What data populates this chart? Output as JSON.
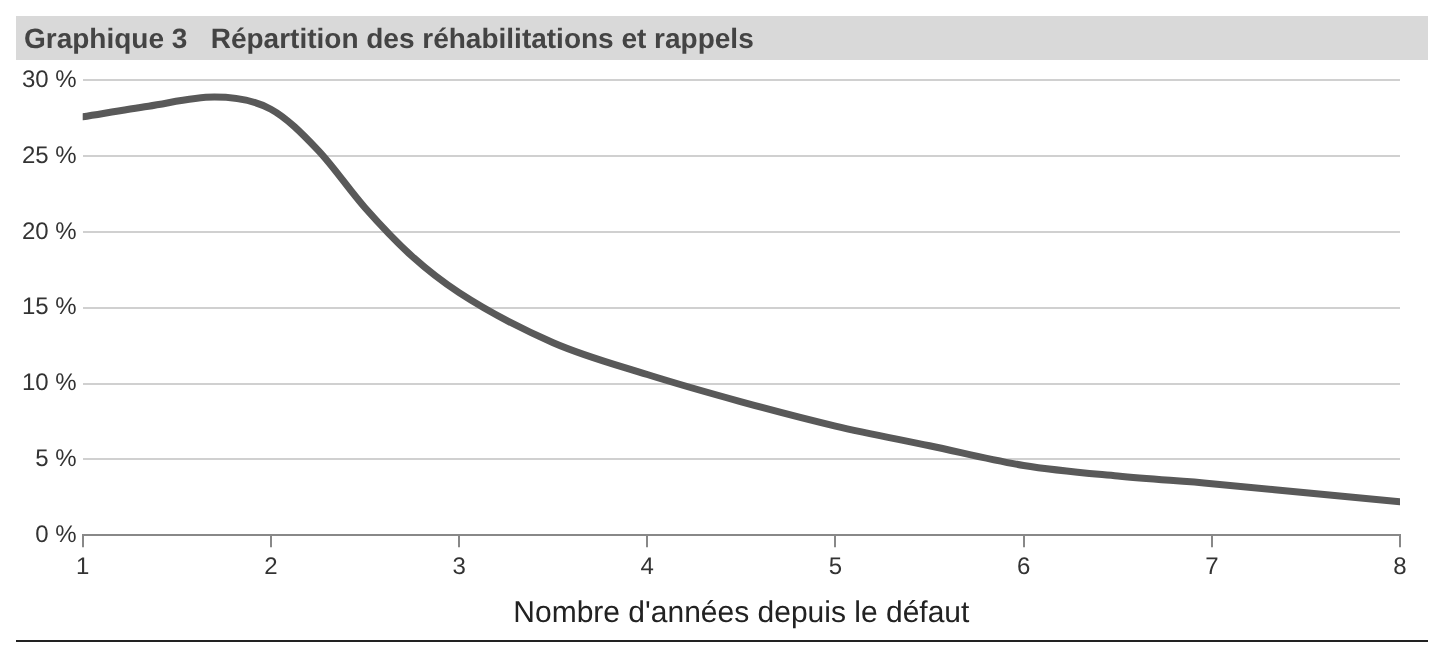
{
  "chart_data": {
    "type": "line",
    "title": "Graphique 3   Répartition des réhabilitations et rappels",
    "xlabel": "Nombre d'années depuis le défaut",
    "series": [
      {
        "color": "#595959",
        "x": [
          1,
          1.35,
          1.7,
          2,
          2.25,
          2.5,
          2.75,
          3,
          3.5,
          4,
          4.5,
          5,
          5.5,
          6,
          6.5,
          7,
          7.5,
          8
        ],
        "values": [
          27.6,
          28.3,
          28.9,
          28.1,
          25.4,
          21.6,
          18.4,
          16,
          12.7,
          10.6,
          8.8,
          7.2,
          5.9,
          4.6,
          3.9,
          3.4,
          2.8,
          2.2
        ]
      }
    ],
    "xlim": [
      1,
      8
    ],
    "xticks": [
      1,
      2,
      3,
      4,
      5,
      6,
      7,
      8
    ],
    "ylim": [
      0,
      30
    ],
    "yticks": [
      {
        "value": 0,
        "label": "0 %"
      },
      {
        "value": 5,
        "label": "5 %"
      },
      {
        "value": 10,
        "label": "10 %"
      },
      {
        "value": 15,
        "label": "15 %"
      },
      {
        "value": 20,
        "label": "20 %"
      },
      {
        "value": 25,
        "label": "25 %"
      },
      {
        "value": 30,
        "label": "30 %"
      }
    ],
    "grid": "y",
    "legend": false,
    "marker": "none",
    "line_style": "solid"
  }
}
